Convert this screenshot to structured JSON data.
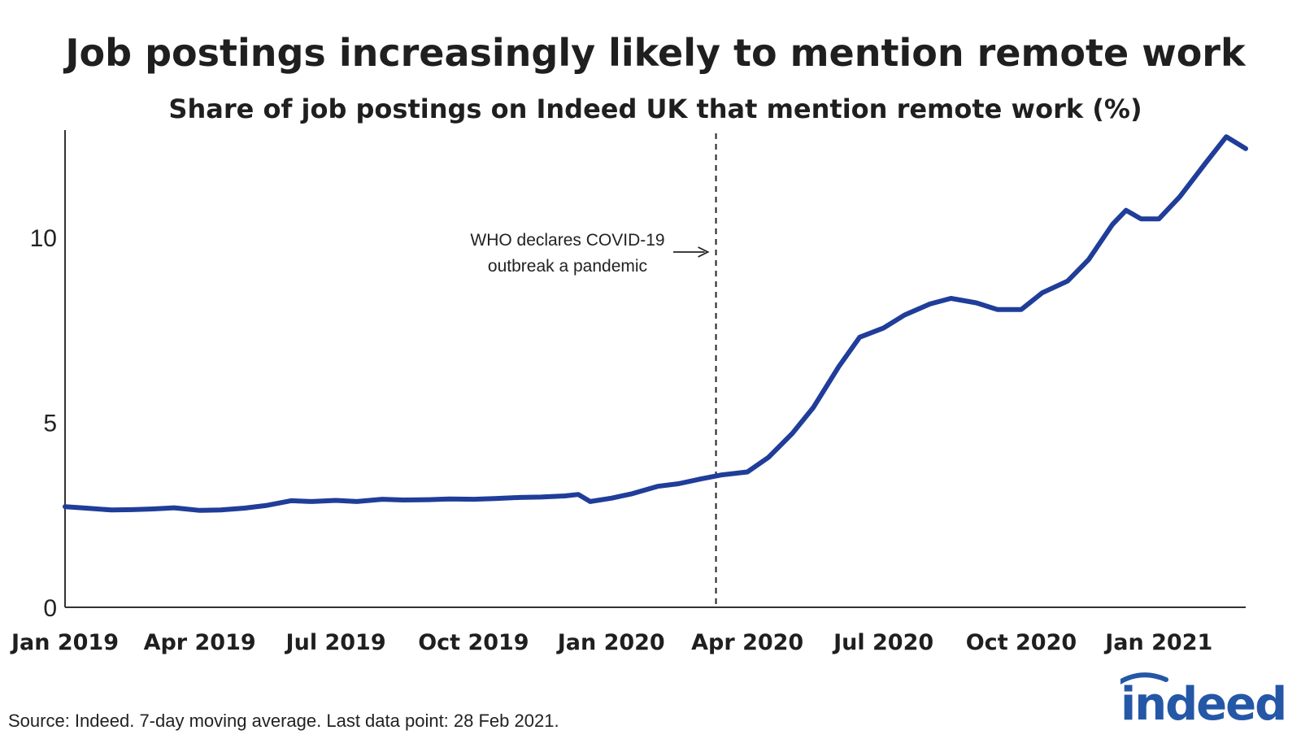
{
  "title": "Job postings increasingly likely to mention remote work",
  "subtitle": "Share of job postings on Indeed UK that mention remote work (%)",
  "source": "Source: Indeed. 7-day moving average. Last data point: 28 Feb 2021.",
  "logo_text": "indeed",
  "colors": {
    "line": "#1f3d99",
    "axis": "#333333",
    "logo": "#2557a7"
  },
  "chart_data": {
    "type": "line",
    "title": "Job postings increasingly likely to mention remote work",
    "subtitle": "Share of job postings on Indeed UK that mention remote work (%)",
    "xlabel": "",
    "ylabel": "",
    "ylim": [
      0,
      12.9
    ],
    "xlim": [
      "2019-01-01",
      "2021-02-28"
    ],
    "grid": false,
    "y_ticks": [
      0,
      5,
      10
    ],
    "y_tick_labels": [
      "0",
      "5",
      "10"
    ],
    "x_ticks": [
      "2019-01-01",
      "2019-04-01",
      "2019-07-01",
      "2019-10-01",
      "2020-01-01",
      "2020-04-01",
      "2020-07-01",
      "2020-10-01",
      "2021-01-01"
    ],
    "x_tick_labels": [
      "Jan 2019",
      "Apr 2019",
      "Jul 2019",
      "Oct 2019",
      "Jan 2020",
      "Apr 2020",
      "Jul 2020",
      "Oct 2020",
      "Jan 2021"
    ],
    "annotation": {
      "x": "2020-03-11",
      "lines": [
        "WHO declares COVID-19",
        "outbreak a pandemic"
      ]
    },
    "series": [
      {
        "points": [
          [
            "2019-01-01",
            2.72
          ],
          [
            "2019-01-15",
            2.68
          ],
          [
            "2019-02-01",
            2.63
          ],
          [
            "2019-02-15",
            2.64
          ],
          [
            "2019-03-01",
            2.66
          ],
          [
            "2019-03-15",
            2.69
          ],
          [
            "2019-04-01",
            2.62
          ],
          [
            "2019-04-15",
            2.63
          ],
          [
            "2019-05-01",
            2.68
          ],
          [
            "2019-05-15",
            2.75
          ],
          [
            "2019-06-01",
            2.88
          ],
          [
            "2019-06-15",
            2.86
          ],
          [
            "2019-07-01",
            2.89
          ],
          [
            "2019-07-15",
            2.86
          ],
          [
            "2019-08-01",
            2.92
          ],
          [
            "2019-08-15",
            2.9
          ],
          [
            "2019-09-01",
            2.91
          ],
          [
            "2019-09-15",
            2.93
          ],
          [
            "2019-10-01",
            2.92
          ],
          [
            "2019-10-15",
            2.94
          ],
          [
            "2019-11-01",
            2.97
          ],
          [
            "2019-11-15",
            2.98
          ],
          [
            "2019-12-01",
            3.01
          ],
          [
            "2019-12-10",
            3.05
          ],
          [
            "2019-12-18",
            2.86
          ],
          [
            "2020-01-01",
            2.95
          ],
          [
            "2020-01-15",
            3.07
          ],
          [
            "2020-02-01",
            3.27
          ],
          [
            "2020-02-15",
            3.34
          ],
          [
            "2020-03-01",
            3.47
          ],
          [
            "2020-03-15",
            3.58
          ],
          [
            "2020-04-01",
            3.66
          ],
          [
            "2020-04-15",
            4.05
          ],
          [
            "2020-05-01",
            4.7
          ],
          [
            "2020-05-15",
            5.4
          ],
          [
            "2020-06-01",
            6.5
          ],
          [
            "2020-06-15",
            7.3
          ],
          [
            "2020-07-01",
            7.55
          ],
          [
            "2020-07-15",
            7.9
          ],
          [
            "2020-08-01",
            8.2
          ],
          [
            "2020-08-15",
            8.35
          ],
          [
            "2020-09-01",
            8.23
          ],
          [
            "2020-09-15",
            8.05
          ],
          [
            "2020-10-01",
            8.05
          ],
          [
            "2020-10-15",
            8.5
          ],
          [
            "2020-11-01",
            8.82
          ],
          [
            "2020-11-15",
            9.4
          ],
          [
            "2020-12-01",
            10.35
          ],
          [
            "2020-12-10",
            10.73
          ],
          [
            "2020-12-20",
            10.5
          ],
          [
            "2021-01-01",
            10.5
          ],
          [
            "2021-01-15",
            11.1
          ],
          [
            "2021-02-01",
            12.0
          ],
          [
            "2021-02-15",
            12.72
          ],
          [
            "2021-02-28",
            12.4
          ]
        ]
      }
    ]
  }
}
